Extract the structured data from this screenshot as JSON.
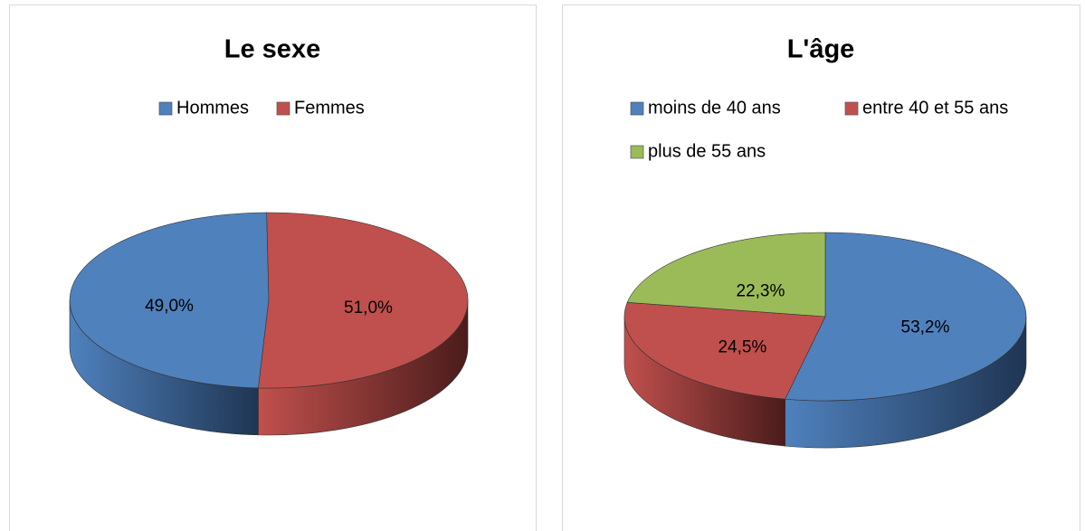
{
  "chart_data": [
    {
      "type": "pie",
      "title": "Le sexe",
      "categories": [
        "Hommes",
        "Femmes"
      ],
      "values": [
        49.0,
        51.0
      ],
      "value_labels": [
        "49,0%",
        "51,0%"
      ],
      "colors": [
        "#4f81bd",
        "#c0504d"
      ],
      "legend": "top"
    },
    {
      "type": "pie",
      "title": "L'âge",
      "categories": [
        "moins de 40 ans",
        "entre 40 et 55 ans",
        "plus de 55 ans"
      ],
      "values": [
        53.2,
        24.5,
        22.3
      ],
      "value_labels": [
        "53,2%",
        "24,5%",
        "22,3%"
      ],
      "colors": [
        "#4f81bd",
        "#c0504d",
        "#9bbb59"
      ],
      "legend": "top"
    }
  ]
}
